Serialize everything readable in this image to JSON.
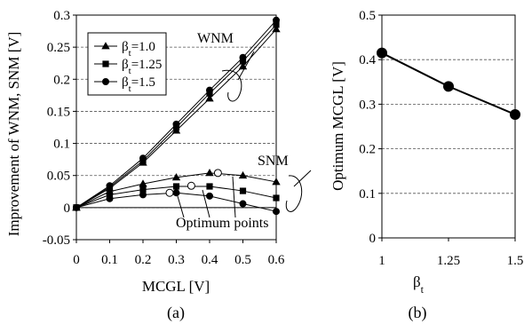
{
  "chart_data": [
    {
      "type": "line",
      "panel_label": "(a)",
      "xlabel": "MCGL [V]",
      "ylabel": "Improvement of WNM, SNM [V]",
      "xlim": [
        0,
        0.6
      ],
      "ylim": [
        -0.05,
        0.3
      ],
      "x_ticks": [
        "0",
        "0.1",
        "0.2",
        "0.3",
        "0.4",
        "0.5",
        "0.6"
      ],
      "y_ticks": [
        "-0.05",
        "0",
        "0.05",
        "0.1",
        "0.15",
        "0.2",
        "0.25",
        "0.3"
      ],
      "grid": "horizontal dashed",
      "legend_position": "top-left",
      "x": [
        0,
        0.1,
        0.2,
        0.3,
        0.4,
        0.5,
        0.6
      ],
      "legend": [
        {
          "name_prefix": "β",
          "name_sub": "t",
          "name_suffix": "=1.0",
          "marker": "triangle"
        },
        {
          "name_prefix": "β",
          "name_sub": "t",
          "name_suffix": "=1.25",
          "marker": "square"
        },
        {
          "name_prefix": "β",
          "name_sub": "t",
          "name_suffix": "=1.5",
          "marker": "circle"
        }
      ],
      "series": [
        {
          "metric": "WNM",
          "marker": "triangle",
          "values": [
            0,
            0.03,
            0.07,
            0.12,
            0.17,
            0.22,
            0.278
          ]
        },
        {
          "metric": "WNM",
          "marker": "square",
          "values": [
            0,
            0.032,
            0.073,
            0.125,
            0.178,
            0.228,
            0.285
          ]
        },
        {
          "metric": "WNM",
          "marker": "circle",
          "values": [
            0,
            0.034,
            0.077,
            0.13,
            0.183,
            0.234,
            0.292
          ]
        },
        {
          "metric": "SNM",
          "marker": "triangle",
          "values": [
            0,
            0.025,
            0.037,
            0.047,
            0.054,
            0.05,
            0.04
          ]
        },
        {
          "metric": "SNM",
          "marker": "square",
          "values": [
            0,
            0.02,
            0.028,
            0.033,
            0.033,
            0.026,
            0.015
          ]
        },
        {
          "metric": "SNM",
          "marker": "circle",
          "values": [
            0,
            0.014,
            0.02,
            0.023,
            0.018,
            0.006,
            -0.006
          ]
        }
      ],
      "optimum_points": [
        {
          "x": 0.28,
          "y": 0.023
        },
        {
          "x": 0.345,
          "y": 0.034
        },
        {
          "x": 0.425,
          "y": 0.054
        }
      ],
      "annotations": {
        "wnm": "WNM",
        "snm": "SNM",
        "optimum": "Optimum points"
      }
    },
    {
      "type": "line",
      "panel_label": "(b)",
      "ylabel": "Optimum MCGL [V]",
      "xlabel_prefix": "β",
      "xlabel_sub": "t",
      "categories": [
        "1",
        "1.25",
        "1.5"
      ],
      "x": [
        1,
        1.25,
        1.5
      ],
      "values": [
        0.415,
        0.34,
        0.277
      ],
      "xlim": [
        1,
        1.5
      ],
      "ylim": [
        0,
        0.5
      ],
      "y_ticks": [
        "0",
        "0.1",
        "0.2",
        "0.3",
        "0.4",
        "0.5"
      ],
      "grid": "horizontal dashed"
    }
  ]
}
